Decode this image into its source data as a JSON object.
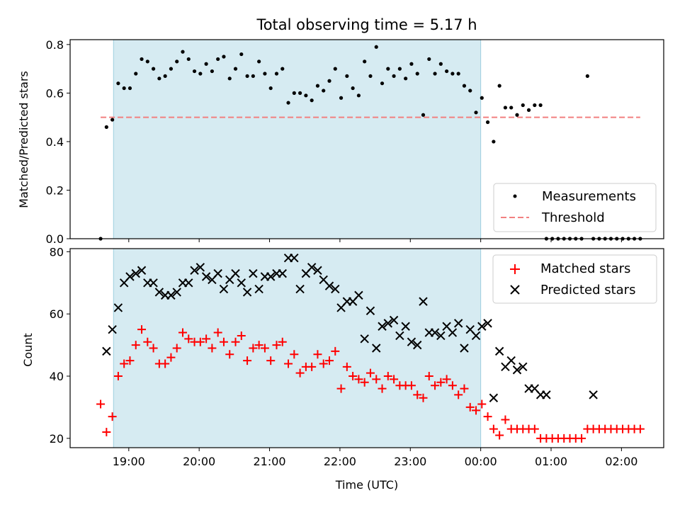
{
  "chart_data": {
    "title": "Total observing time = 5.17 h",
    "xlabel": "Time (UTC)",
    "x_ticks": [
      "19:00",
      "20:00",
      "21:00",
      "22:00",
      "23:00",
      "00:00",
      "01:00",
      "02:00"
    ],
    "shaded_x_range": [
      "18:47",
      "00:00"
    ],
    "x_range": [
      "18:10",
      "02:36"
    ],
    "top": {
      "type": "scatter",
      "ylabel": "Matched/Predicted stars",
      "ylim": [
        0,
        0.82
      ],
      "y_ticks": [
        "0.0",
        "0.2",
        "0.4",
        "0.6",
        "0.8"
      ],
      "threshold": 0.5,
      "legend": {
        "position": "lower-right",
        "items": [
          "Measurements",
          "Threshold"
        ]
      },
      "series": [
        {
          "name": "Measurements",
          "color": "#000000",
          "x": [
            "18:36",
            "18:41",
            "18:46",
            "18:51",
            "18:56",
            "19:01",
            "19:06",
            "19:11",
            "19:16",
            "19:21",
            "19:26",
            "19:31",
            "19:36",
            "19:41",
            "19:46",
            "19:51",
            "19:56",
            "20:01",
            "20:06",
            "20:11",
            "20:16",
            "20:21",
            "20:26",
            "20:31",
            "20:36",
            "20:41",
            "20:46",
            "20:51",
            "20:56",
            "21:01",
            "21:06",
            "21:11",
            "21:16",
            "21:21",
            "21:26",
            "21:31",
            "21:36",
            "21:41",
            "21:46",
            "21:51",
            "21:56",
            "22:01",
            "22:06",
            "22:11",
            "22:16",
            "22:21",
            "22:26",
            "22:31",
            "22:36",
            "22:41",
            "22:46",
            "22:51",
            "22:56",
            "23:01",
            "23:06",
            "23:11",
            "23:16",
            "23:21",
            "23:26",
            "23:31",
            "23:36",
            "23:41",
            "23:46",
            "23:51",
            "23:56",
            "00:01",
            "00:06",
            "00:11",
            "00:16",
            "00:21",
            "00:26",
            "00:31",
            "00:36",
            "00:41",
            "00:46",
            "00:51",
            "00:56",
            "01:01",
            "01:06",
            "01:11",
            "01:16",
            "01:21",
            "01:26",
            "01:31",
            "01:36",
            "01:41",
            "01:46",
            "01:51",
            "01:56",
            "02:01",
            "02:06",
            "02:11",
            "02:16"
          ],
          "y": [
            0.0,
            0.46,
            0.49,
            0.64,
            0.62,
            0.62,
            0.68,
            0.74,
            0.73,
            0.7,
            0.66,
            0.67,
            0.7,
            0.73,
            0.77,
            0.74,
            0.69,
            0.68,
            0.72,
            0.69,
            0.74,
            0.75,
            0.66,
            0.7,
            0.76,
            0.67,
            0.67,
            0.73,
            0.68,
            0.62,
            0.68,
            0.7,
            0.56,
            0.6,
            0.6,
            0.59,
            0.57,
            0.63,
            0.61,
            0.65,
            0.7,
            0.58,
            0.67,
            0.62,
            0.59,
            0.73,
            0.67,
            0.79,
            0.64,
            0.7,
            0.67,
            0.7,
            0.66,
            0.72,
            0.68,
            0.51,
            0.74,
            0.68,
            0.72,
            0.69,
            0.68,
            0.68,
            0.63,
            0.61,
            0.52,
            0.58,
            0.48,
            0.4,
            0.63,
            0.54,
            0.54,
            0.51,
            0.55,
            0.53,
            0.55,
            0.55,
            0.0,
            0.0,
            0.0,
            0.0,
            0.0,
            0.0,
            0.0,
            0.67,
            0.0,
            0.0,
            0.0,
            0.0,
            0.0,
            0.0,
            0.0,
            0.0,
            0.0
          ]
        },
        {
          "name": "Threshold",
          "color": "#f28080",
          "style": "dashed"
        }
      ]
    },
    "bottom": {
      "type": "scatter",
      "ylabel": "Count",
      "ylim": [
        17,
        81
      ],
      "y_ticks": [
        "20",
        "40",
        "60",
        "80"
      ],
      "legend": {
        "position": "top-right",
        "items": [
          "Matched stars",
          "Predicted stars"
        ]
      },
      "series": [
        {
          "name": "Matched stars",
          "color": "#ff0000",
          "marker": "+",
          "x": [
            "18:36",
            "18:41",
            "18:46",
            "18:51",
            "18:56",
            "19:01",
            "19:06",
            "19:11",
            "19:16",
            "19:21",
            "19:26",
            "19:31",
            "19:36",
            "19:41",
            "19:46",
            "19:51",
            "19:56",
            "20:01",
            "20:06",
            "20:11",
            "20:16",
            "20:21",
            "20:26",
            "20:31",
            "20:36",
            "20:41",
            "20:46",
            "20:51",
            "20:56",
            "21:01",
            "21:06",
            "21:11",
            "21:16",
            "21:21",
            "21:26",
            "21:31",
            "21:36",
            "21:41",
            "21:46",
            "21:51",
            "21:56",
            "22:01",
            "22:06",
            "22:11",
            "22:16",
            "22:21",
            "22:26",
            "22:31",
            "22:36",
            "22:41",
            "22:46",
            "22:51",
            "22:56",
            "23:01",
            "23:06",
            "23:11",
            "23:16",
            "23:21",
            "23:26",
            "23:31",
            "23:36",
            "23:41",
            "23:46",
            "23:51",
            "23:56",
            "00:01",
            "00:06",
            "00:11",
            "00:16",
            "00:21",
            "00:26",
            "00:31",
            "00:36",
            "00:41",
            "00:46",
            "00:51",
            "00:56",
            "01:01",
            "01:06",
            "01:11",
            "01:16",
            "01:21",
            "01:26",
            "01:31",
            "01:36",
            "01:41",
            "01:46",
            "01:51",
            "01:56",
            "02:01",
            "02:06",
            "02:11",
            "02:16"
          ],
          "y": [
            31,
            22,
            27,
            40,
            44,
            45,
            50,
            55,
            51,
            49,
            44,
            44,
            46,
            49,
            54,
            52,
            51,
            51,
            52,
            49,
            54,
            51,
            47,
            51,
            53,
            45,
            49,
            50,
            49,
            45,
            50,
            51,
            44,
            47,
            41,
            43,
            43,
            47,
            44,
            45,
            48,
            36,
            43,
            40,
            39,
            38,
            41,
            39,
            36,
            40,
            39,
            37,
            37,
            37,
            34,
            33,
            40,
            37,
            38,
            39,
            37,
            34,
            36,
            30,
            29,
            31,
            27,
            23,
            21,
            26,
            23,
            23,
            23,
            23,
            23,
            20,
            20,
            20,
            20,
            20,
            20,
            20,
            20,
            23,
            23,
            23,
            23,
            23,
            23,
            23,
            23,
            23,
            23
          ]
        },
        {
          "name": "Predicted stars",
          "color": "#000000",
          "marker": "x",
          "x": [
            "18:41",
            "18:46",
            "18:51",
            "18:56",
            "19:01",
            "19:06",
            "19:11",
            "19:16",
            "19:21",
            "19:26",
            "19:31",
            "19:36",
            "19:41",
            "19:46",
            "19:51",
            "19:56",
            "20:01",
            "20:06",
            "20:11",
            "20:16",
            "20:21",
            "20:26",
            "20:31",
            "20:36",
            "20:41",
            "20:46",
            "20:51",
            "20:56",
            "21:01",
            "21:06",
            "21:11",
            "21:16",
            "21:21",
            "21:26",
            "21:31",
            "21:36",
            "21:41",
            "21:46",
            "21:51",
            "21:56",
            "22:01",
            "22:06",
            "22:11",
            "22:16",
            "22:21",
            "22:26",
            "22:31",
            "22:36",
            "22:41",
            "22:46",
            "22:51",
            "22:56",
            "23:01",
            "23:06",
            "23:11",
            "23:16",
            "23:21",
            "23:26",
            "23:31",
            "23:36",
            "23:41",
            "23:46",
            "23:51",
            "23:56",
            "00:01",
            "00:06",
            "00:11",
            "00:16",
            "00:21",
            "00:26",
            "00:31",
            "00:36",
            "00:41",
            "00:46",
            "00:51",
            "00:56",
            "01:36"
          ],
          "y": [
            48,
            55,
            62,
            70,
            72,
            73,
            74,
            70,
            70,
            67,
            66,
            66,
            67,
            70,
            70,
            74,
            75,
            72,
            71,
            73,
            68,
            71,
            73,
            70,
            67,
            73,
            68,
            72,
            72,
            73,
            73,
            78,
            78,
            68,
            73,
            75,
            74,
            71,
            69,
            68,
            62,
            64,
            64,
            66,
            52,
            61,
            49,
            56,
            57,
            58,
            53,
            56,
            51,
            50,
            64,
            54,
            54,
            53,
            56,
            54,
            57,
            49,
            55,
            53,
            56,
            57,
            33,
            48,
            43,
            45,
            42,
            43,
            36,
            36,
            34,
            34,
            34
          ]
        }
      ]
    }
  }
}
